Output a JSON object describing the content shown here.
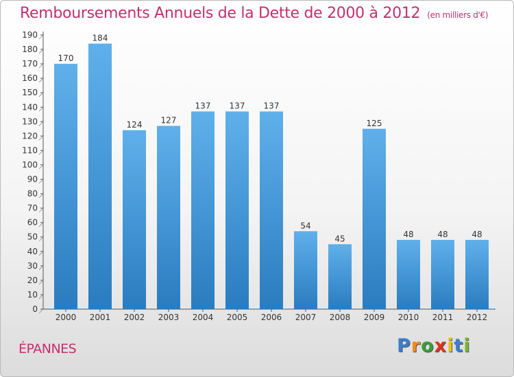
{
  "title": "Remboursements Annuels de la Dette de 2000 à 2012",
  "subtitle": "(en milliers d'€)",
  "town": "ÉPANNES",
  "logo": {
    "letters": [
      "P",
      "r",
      "o",
      "x",
      "i",
      "t",
      "i"
    ],
    "colors": [
      "#3a7fd0",
      "#f08a1a",
      "#3a9e3a",
      "#e0301e",
      "#e8c21a",
      "#3a7fd0",
      "#7ab82a"
    ]
  },
  "colors": {
    "bar_top": "#5fb0ea",
    "bar_bottom": "#2a7cc0",
    "title": "#c0306e"
  },
  "chart_data": {
    "type": "bar",
    "categories": [
      "2000",
      "2001",
      "2002",
      "2003",
      "2004",
      "2005",
      "2006",
      "2007",
      "2008",
      "2009",
      "2010",
      "2011",
      "2012"
    ],
    "values": [
      170,
      184,
      124,
      127,
      137,
      137,
      137,
      54,
      45,
      125,
      48,
      48,
      48
    ],
    "title": "Remboursements Annuels de la Dette de 2000 à 2012",
    "subtitle": "(en milliers d'€)",
    "xlabel": "",
    "ylabel": "",
    "ylim": [
      0,
      190
    ],
    "yticks": [
      0,
      10,
      20,
      30,
      40,
      50,
      60,
      70,
      80,
      90,
      100,
      110,
      120,
      130,
      140,
      150,
      160,
      170,
      180,
      190
    ],
    "grid": false
  }
}
